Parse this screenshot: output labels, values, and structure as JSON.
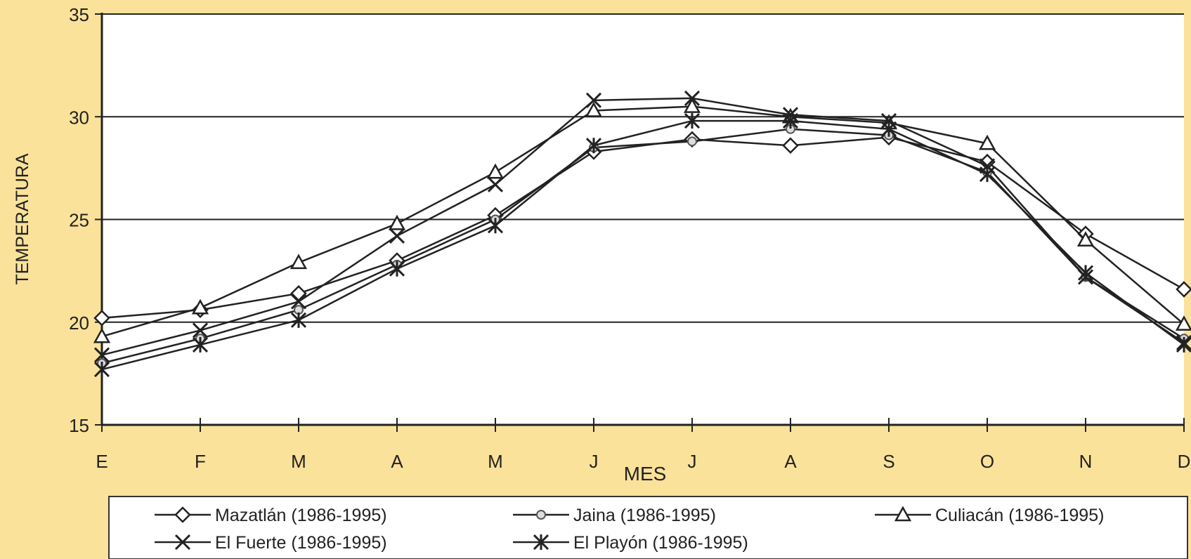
{
  "chart_data": {
    "type": "line",
    "title": "",
    "xlabel": "MES",
    "ylabel": "TEMPERATURA",
    "categories": [
      "E",
      "F",
      "M",
      "A",
      "M",
      "J",
      "J",
      "A",
      "S",
      "O",
      "N",
      "D"
    ],
    "ylim": [
      15,
      35
    ],
    "y_ticks": [
      15,
      20,
      25,
      30,
      35
    ],
    "grid": true,
    "legend_position": "bottom",
    "series": [
      {
        "name": "Mazatlán (1986-1995)",
        "marker": "diamond",
        "values": [
          20.2,
          20.6,
          21.4,
          23.0,
          25.2,
          28.3,
          28.9,
          28.6,
          29.0,
          27.8,
          24.3,
          21.6
        ]
      },
      {
        "name": "Jaina (1986-1995)",
        "marker": "dot",
        "values": [
          18.0,
          19.2,
          20.6,
          22.8,
          25.0,
          28.5,
          28.8,
          29.4,
          29.1,
          27.3,
          22.2,
          19.2
        ]
      },
      {
        "name": "Culiacán (1986-1995)",
        "marker": "triangle",
        "values": [
          19.3,
          20.7,
          22.9,
          24.8,
          27.3,
          30.3,
          30.5,
          30.0,
          29.7,
          28.7,
          24.0,
          19.9
        ]
      },
      {
        "name": "El Fuerte (1986-1995)",
        "marker": "x",
        "values": [
          18.4,
          19.6,
          21.0,
          24.2,
          26.7,
          30.8,
          30.9,
          30.1,
          29.8,
          27.6,
          22.2,
          19.0
        ]
      },
      {
        "name": "El Playón (1986-1995)",
        "marker": "asterisk",
        "values": [
          17.7,
          18.9,
          20.1,
          22.6,
          24.7,
          28.6,
          29.8,
          29.8,
          29.4,
          27.2,
          22.4,
          18.9
        ]
      }
    ]
  },
  "colors": {
    "background": "#fbe29a",
    "plot_area": "#ffffff",
    "line": "#222222"
  }
}
